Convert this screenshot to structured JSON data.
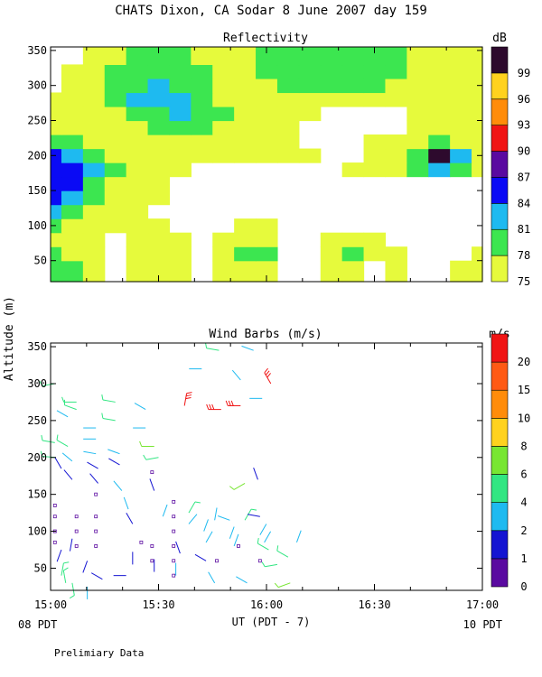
{
  "title": "CHATS Dixon, CA  Sodar   8 June 2007  day 159",
  "ylabel": "Altitude (m)",
  "xlabel": "UT  (PDT - 7)",
  "left_foot": "08 PDT",
  "right_foot": "10 PDT",
  "note": "Prelimiary Data",
  "chart_data": [
    {
      "type": "heatmap",
      "title": "Reflectivity",
      "colorbar_unit": "dB",
      "colorbar_ticks": [
        "75",
        "78",
        "81",
        "84",
        "87",
        "90",
        "93",
        "96",
        "99"
      ],
      "colorbar_colors": [
        "#e6fa3c",
        "#3ce650",
        "#1ebaf0",
        "#0a0af5",
        "#5a0aa0",
        "#f01414",
        "#ff8c0a",
        "#ffd21e",
        "#2d0a2d"
      ],
      "x_ticks": [
        "15:00",
        "15:30",
        "16:00",
        "16:30",
        "17:00"
      ],
      "x_range_hours": [
        15.0,
        17.0
      ],
      "y_ticks": [
        "50",
        "100",
        "150",
        "200",
        "250",
        "300",
        "350"
      ],
      "ylim": [
        20,
        355
      ],
      "x_times": [
        15.0,
        15.1,
        15.2,
        15.3,
        15.4,
        15.5,
        15.6,
        15.7,
        15.8,
        15.9,
        16.0,
        16.1,
        16.2,
        16.3,
        16.4,
        16.5,
        16.6,
        16.7,
        16.8,
        16.9,
        17.0
      ],
      "y_heights": [
        40,
        60,
        80,
        100,
        120,
        140,
        160,
        180,
        200,
        220,
        240,
        260,
        280,
        300,
        320,
        340
      ],
      "values_db": [
        [
          78,
          78,
          75,
          74,
          75,
          76,
          75,
          74,
          75,
          76,
          77,
          74,
          74,
          75,
          75,
          74,
          75,
          74,
          74,
          75,
          77
        ],
        [
          78,
          77,
          75,
          74,
          75,
          77,
          75,
          74,
          75,
          79,
          78,
          74,
          74,
          76,
          79,
          76,
          75,
          74,
          73,
          74,
          75
        ],
        [
          77,
          76,
          75,
          74,
          75,
          76,
          75,
          74,
          75,
          76,
          76,
          74,
          74,
          75,
          76,
          75,
          74,
          74,
          73,
          73,
          74
        ],
        [
          79,
          77,
          76,
          75,
          75,
          75,
          74,
          74,
          74,
          75,
          75,
          74,
          74,
          74,
          74,
          74,
          74,
          74,
          74,
          74,
          74
        ],
        [
          81,
          79,
          77,
          76,
          75,
          74,
          74,
          74,
          74,
          74,
          74,
          74,
          74,
          74,
          74,
          74,
          74,
          73,
          73,
          73,
          74
        ],
        [
          84,
          82,
          79,
          77,
          75,
          75,
          74,
          74,
          74,
          74,
          74,
          74,
          74,
          74,
          74,
          74,
          74,
          74,
          74,
          74,
          74
        ],
        [
          85,
          84,
          80,
          77,
          76,
          75,
          74,
          74,
          73,
          73,
          74,
          74,
          74,
          74,
          74,
          74,
          74,
          74,
          74,
          74,
          74
        ],
        [
          86,
          85,
          81,
          78,
          76,
          75,
          75,
          74,
          74,
          74,
          74,
          74,
          74,
          74,
          75,
          76,
          75,
          78,
          83,
          79,
          76
        ],
        [
          85,
          83,
          79,
          77,
          76,
          76,
          76,
          76,
          75,
          75,
          75,
          75,
          75,
          74,
          74,
          75,
          75,
          79,
          99,
          81,
          77
        ],
        [
          80,
          79,
          77,
          76,
          76,
          76,
          77,
          77,
          76,
          75,
          75,
          75,
          74,
          74,
          74,
          75,
          75,
          77,
          80,
          77,
          76
        ],
        [
          77,
          76,
          75,
          76,
          77,
          78,
          79,
          78,
          77,
          76,
          75,
          75,
          74,
          74,
          74,
          74,
          74,
          75,
          76,
          75,
          75
        ],
        [
          75,
          75,
          76,
          77,
          79,
          80,
          81,
          80,
          78,
          76,
          76,
          75,
          75,
          74,
          74,
          74,
          74,
          75,
          75,
          76,
          76
        ],
        [
          75,
          76,
          77,
          79,
          81,
          82,
          81,
          79,
          77,
          76,
          76,
          75,
          75,
          76,
          76,
          76,
          76,
          76,
          76,
          77,
          77
        ],
        [
          74,
          75,
          76,
          79,
          80,
          81,
          80,
          78,
          77,
          77,
          77,
          78,
          78,
          78,
          78,
          78,
          77,
          77,
          77,
          77,
          77
        ],
        [
          74,
          75,
          76,
          78,
          79,
          80,
          79,
          78,
          77,
          77,
          78,
          79,
          79,
          79,
          79,
          79,
          78,
          77,
          77,
          77,
          77
        ],
        [
          73,
          74,
          75,
          77,
          78,
          79,
          78,
          77,
          76,
          77,
          78,
          79,
          79,
          79,
          79,
          79,
          78,
          77,
          76,
          76,
          76
        ]
      ]
    },
    {
      "type": "scatter",
      "title": "Wind Barbs (m/s)",
      "colorbar_unit": "m/s",
      "colorbar_ticks": [
        "0",
        "1",
        "2",
        "4",
        "6",
        "8",
        "10",
        "15",
        "20"
      ],
      "colorbar_colors": [
        "#5a0aa0",
        "#1414d2",
        "#1ebaf0",
        "#32e682",
        "#78e632",
        "#ffd21e",
        "#ff8c0a",
        "#ff5a14",
        "#f01414"
      ],
      "x_ticks": [
        "15:00",
        "15:30",
        "16:00",
        "16:30",
        "17:00"
      ],
      "x_range_hours": [
        15.0,
        17.0
      ],
      "y_ticks": [
        "50",
        "100",
        "150",
        "200",
        "250",
        "300",
        "350"
      ],
      "ylim": [
        20,
        355
      ],
      "barbs": [
        {
          "t": 15.02,
          "h": 300,
          "spd": 4,
          "dir": 260
        },
        {
          "t": 15.02,
          "h": 220,
          "spd": 4,
          "dir": 280
        },
        {
          "t": 15.02,
          "h": 200,
          "spd": 4,
          "dir": 275
        },
        {
          "t": 15.05,
          "h": 185,
          "spd": 1,
          "dir": 330
        },
        {
          "t": 15.05,
          "h": 75,
          "spd": 1,
          "dir": 200
        },
        {
          "t": 15.05,
          "h": 40,
          "spd": 4,
          "dir": 10
        },
        {
          "t": 15.07,
          "h": 30,
          "spd": 4,
          "dir": 350
        },
        {
          "t": 15.08,
          "h": 255,
          "spd": 2,
          "dir": 300
        },
        {
          "t": 15.08,
          "h": 215,
          "spd": 4,
          "dir": 300
        },
        {
          "t": 15.1,
          "h": 195,
          "spd": 2,
          "dir": 310
        },
        {
          "t": 15.1,
          "h": 170,
          "spd": 1,
          "dir": 320
        },
        {
          "t": 15.1,
          "h": 90,
          "spd": 1,
          "dir": 190
        },
        {
          "t": 15.1,
          "h": 30,
          "spd": 4,
          "dir": 170
        },
        {
          "t": 15.12,
          "h": 275,
          "spd": 4,
          "dir": 270
        },
        {
          "t": 15.12,
          "h": 265,
          "spd": 4,
          "dir": 290
        },
        {
          "t": 15.17,
          "h": 60,
          "spd": 1,
          "dir": 200
        },
        {
          "t": 15.17,
          "h": 25,
          "spd": 2,
          "dir": 180
        },
        {
          "t": 15.21,
          "h": 240,
          "spd": 2,
          "dir": 270
        },
        {
          "t": 15.21,
          "h": 225,
          "spd": 2,
          "dir": 270
        },
        {
          "t": 15.21,
          "h": 205,
          "spd": 2,
          "dir": 280
        },
        {
          "t": 15.22,
          "h": 185,
          "spd": 1,
          "dir": 300
        },
        {
          "t": 15.22,
          "h": 165,
          "spd": 1,
          "dir": 320
        },
        {
          "t": 15.24,
          "h": 35,
          "spd": 1,
          "dir": 300
        },
        {
          "t": 15.3,
          "h": 275,
          "spd": 4,
          "dir": 280
        },
        {
          "t": 15.3,
          "h": 250,
          "spd": 4,
          "dir": 280
        },
        {
          "t": 15.32,
          "h": 205,
          "spd": 2,
          "dir": 290
        },
        {
          "t": 15.32,
          "h": 190,
          "spd": 1,
          "dir": 300
        },
        {
          "t": 15.33,
          "h": 155,
          "spd": 2,
          "dir": 320
        },
        {
          "t": 15.35,
          "h": 40,
          "spd": 1,
          "dir": 270
        },
        {
          "t": 15.38,
          "h": 55,
          "spd": 1,
          "dir": 0
        },
        {
          "t": 15.38,
          "h": 110,
          "spd": 1,
          "dir": 330
        },
        {
          "t": 15.36,
          "h": 130,
          "spd": 2,
          "dir": 340
        },
        {
          "t": 15.44,
          "h": 265,
          "spd": 2,
          "dir": 300
        },
        {
          "t": 15.44,
          "h": 240,
          "spd": 2,
          "dir": 270
        },
        {
          "t": 15.48,
          "h": 215,
          "spd": 6,
          "dir": 270
        },
        {
          "t": 15.5,
          "h": 200,
          "spd": 4,
          "dir": 260
        },
        {
          "t": 15.48,
          "h": 155,
          "spd": 1,
          "dir": 340
        },
        {
          "t": 15.48,
          "h": 45,
          "spd": 1,
          "dir": 0
        },
        {
          "t": 15.52,
          "h": 120,
          "spd": 2,
          "dir": 20
        },
        {
          "t": 15.58,
          "h": 40,
          "spd": 2,
          "dir": 0
        },
        {
          "t": 15.6,
          "h": 70,
          "spd": 1,
          "dir": 340
        },
        {
          "t": 15.62,
          "h": 270,
          "spd": 20,
          "dir": 10
        },
        {
          "t": 15.64,
          "h": 125,
          "spd": 4,
          "dir": 30
        },
        {
          "t": 15.64,
          "h": 110,
          "spd": 2,
          "dir": 40
        },
        {
          "t": 15.7,
          "h": 320,
          "spd": 2,
          "dir": 270
        },
        {
          "t": 15.71,
          "h": 100,
          "spd": 2,
          "dir": 20
        },
        {
          "t": 15.72,
          "h": 85,
          "spd": 2,
          "dir": 30
        },
        {
          "t": 15.72,
          "h": 60,
          "spd": 1,
          "dir": 300
        },
        {
          "t": 15.76,
          "h": 115,
          "spd": 2,
          "dir": 10
        },
        {
          "t": 15.76,
          "h": 30,
          "spd": 2,
          "dir": 330
        },
        {
          "t": 15.78,
          "h": 345,
          "spd": 4,
          "dir": 280
        },
        {
          "t": 15.79,
          "h": 265,
          "spd": 20,
          "dir": 270
        },
        {
          "t": 15.83,
          "h": 115,
          "spd": 2,
          "dir": 290
        },
        {
          "t": 15.83,
          "h": 90,
          "spd": 2,
          "dir": 20
        },
        {
          "t": 15.85,
          "h": 80,
          "spd": 2,
          "dir": 20
        },
        {
          "t": 15.88,
          "h": 270,
          "spd": 20,
          "dir": 270
        },
        {
          "t": 15.88,
          "h": 305,
          "spd": 2,
          "dir": 320
        },
        {
          "t": 15.9,
          "h": 165,
          "spd": 6,
          "dir": 240
        },
        {
          "t": 15.9,
          "h": 115,
          "spd": 4,
          "dir": 30
        },
        {
          "t": 15.91,
          "h": 30,
          "spd": 2,
          "dir": 300
        },
        {
          "t": 15.94,
          "h": 345,
          "spd": 2,
          "dir": 290
        },
        {
          "t": 15.96,
          "h": 170,
          "spd": 1,
          "dir": 340
        },
        {
          "t": 15.97,
          "h": 120,
          "spd": 1,
          "dir": 280
        },
        {
          "t": 15.97,
          "h": 95,
          "spd": 2,
          "dir": 30
        },
        {
          "t": 15.98,
          "h": 280,
          "spd": 2,
          "dir": 270
        },
        {
          "t": 15.99,
          "h": 85,
          "spd": 2,
          "dir": 30
        },
        {
          "t": 16.01,
          "h": 75,
          "spd": 4,
          "dir": 300
        },
        {
          "t": 16.02,
          "h": 300,
          "spd": 20,
          "dir": 330
        },
        {
          "t": 16.05,
          "h": 55,
          "spd": 4,
          "dir": 260
        },
        {
          "t": 16.1,
          "h": 65,
          "spd": 4,
          "dir": 300
        },
        {
          "t": 16.11,
          "h": 30,
          "spd": 6,
          "dir": 250
        },
        {
          "t": 16.14,
          "h": 85,
          "spd": 2,
          "dir": 20
        }
      ],
      "calm_points": [
        {
          "t": 15.02,
          "h": 135
        },
        {
          "t": 15.02,
          "h": 120
        },
        {
          "t": 15.02,
          "h": 100
        },
        {
          "t": 15.02,
          "h": 85
        },
        {
          "t": 15.12,
          "h": 120
        },
        {
          "t": 15.12,
          "h": 100
        },
        {
          "t": 15.12,
          "h": 80
        },
        {
          "t": 15.21,
          "h": 150
        },
        {
          "t": 15.21,
          "h": 120
        },
        {
          "t": 15.21,
          "h": 100
        },
        {
          "t": 15.21,
          "h": 80
        },
        {
          "t": 15.42,
          "h": 85
        },
        {
          "t": 15.47,
          "h": 180
        },
        {
          "t": 15.47,
          "h": 60
        },
        {
          "t": 15.47,
          "h": 80
        },
        {
          "t": 15.57,
          "h": 140
        },
        {
          "t": 15.57,
          "h": 120
        },
        {
          "t": 15.57,
          "h": 100
        },
        {
          "t": 15.57,
          "h": 80
        },
        {
          "t": 15.57,
          "h": 60
        },
        {
          "t": 15.57,
          "h": 40
        },
        {
          "t": 15.77,
          "h": 60
        },
        {
          "t": 15.87,
          "h": 80
        },
        {
          "t": 15.97,
          "h": 60
        }
      ]
    }
  ]
}
